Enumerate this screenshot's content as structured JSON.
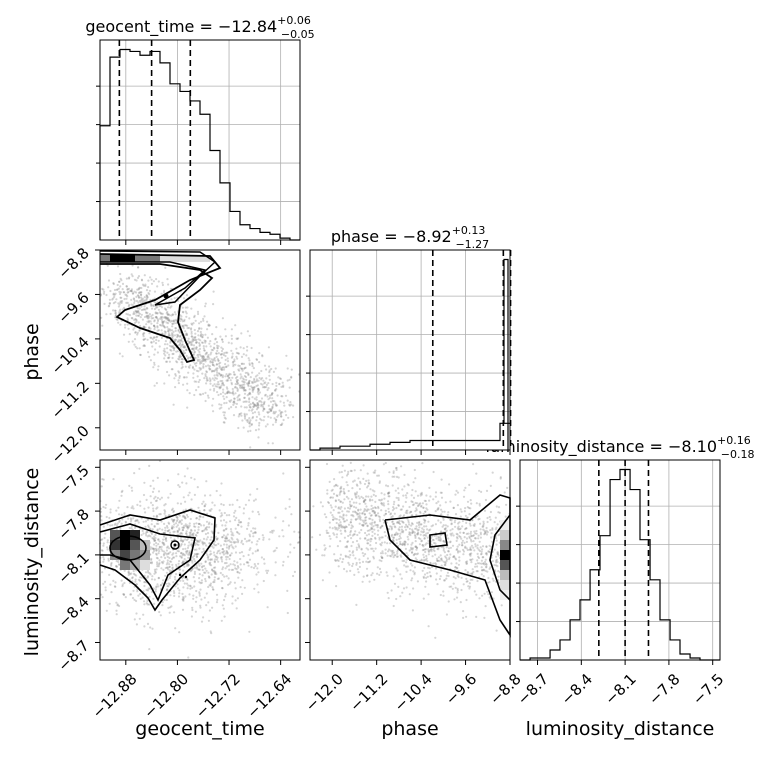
{
  "chart_data": {
    "type": "corner",
    "parameters": [
      "geocent_time",
      "phase",
      "luminosity_distance"
    ],
    "grid": true,
    "titles": [
      {
        "parameter": "geocent_time",
        "text": "geocent_time = −12.84",
        "plus": "+0.06",
        "minus": "−0.05"
      },
      {
        "parameter": "phase",
        "text": "phase = −8.92",
        "plus": "+0.13",
        "minus": "−1.27"
      },
      {
        "parameter": "luminosity_distance",
        "text": "luminosity_distance = −8.10",
        "plus": "+0.16",
        "minus": "−0.18"
      }
    ],
    "axes": {
      "geocent_time": {
        "label": "geocent_time",
        "range": [
          -12.92,
          -12.61
        ],
        "ticks": [
          -12.88,
          -12.8,
          -12.72,
          -12.64
        ],
        "tick_labels": [
          "−12.88",
          "−12.80",
          "−12.72",
          "−12.64"
        ]
      },
      "phase": {
        "label": "phase",
        "range": [
          -12.4,
          -8.8
        ],
        "ticks": [
          -12.0,
          -11.2,
          -10.4,
          -9.6,
          -8.8
        ],
        "tick_labels": [
          "−12.0",
          "−11.2",
          "−10.4",
          "−9.6",
          "−8.8"
        ]
      },
      "luminosity_distance": {
        "label": "luminosity_distance",
        "range": [
          -8.82,
          -7.45
        ],
        "ticks": [
          -8.7,
          -8.4,
          -8.1,
          -7.8,
          -7.5
        ],
        "tick_labels": [
          "−8.7",
          "−8.4",
          "−8.1",
          "−7.8",
          "−7.5"
        ]
      }
    },
    "histograms": {
      "geocent_time": {
        "bin_edges": [
          -12.92,
          -12.9045,
          -12.889,
          -12.8735,
          -12.858,
          -12.8425,
          -12.827,
          -12.8115,
          -12.796,
          -12.7805,
          -12.765,
          -12.7495,
          -12.734,
          -12.7185,
          -12.703,
          -12.6875,
          -12.672,
          -12.6565,
          -12.641,
          -12.6255,
          -12.61
        ],
        "counts": [
          60,
          96,
          100,
          99,
          97,
          99,
          93,
          82,
          78,
          73,
          66,
          47,
          30,
          15,
          8,
          6,
          4,
          3,
          1,
          0
        ],
        "quantiles": [
          -12.89,
          -12.84,
          -12.78
        ]
      },
      "phase": {
        "bin_edges": [
          -12.4,
          -12.22,
          -12.04,
          -11.86,
          -11.68,
          -11.5,
          -11.32,
          -11.14,
          -10.96,
          -10.78,
          -10.6,
          -10.42,
          -10.24,
          -10.06,
          -9.88,
          -9.7,
          -9.52,
          -9.34,
          -9.16,
          -8.98,
          -8.8
        ],
        "counts": [
          0,
          1,
          1,
          2,
          2,
          2,
          3,
          3,
          4,
          4,
          5,
          5,
          5,
          5,
          5,
          5,
          5,
          5,
          5,
          14
        ],
        "counts_edge": [
          100
        ],
        "quantiles": [
          -10.19,
          -8.92,
          -8.79
        ]
      },
      "luminosity_distance": {
        "bin_edges": [
          -8.82,
          -8.751,
          -8.683,
          -8.614,
          -8.546,
          -8.477,
          -8.409,
          -8.34,
          -8.272,
          -8.203,
          -8.135,
          -8.066,
          -7.998,
          -7.929,
          -7.861,
          -7.792,
          -7.724,
          -7.655,
          -7.587,
          -7.518,
          -7.45
        ],
        "counts": [
          0,
          1,
          1,
          5,
          10,
          20,
          30,
          45,
          62,
          90,
          95,
          85,
          60,
          40,
          20,
          10,
          3,
          1,
          0,
          0
        ],
        "quantiles": [
          -8.28,
          -8.1,
          -7.94
        ]
      }
    },
    "pairs": [
      {
        "x": "geocent_time",
        "y": "phase",
        "density_peak": [
          -12.86,
          -8.82
        ]
      },
      {
        "x": "geocent_time",
        "y": "luminosity_distance",
        "density_peak": [
          -12.87,
          -8.08
        ]
      },
      {
        "x": "phase",
        "y": "luminosity_distance",
        "density_peak": [
          -8.82,
          -8.1
        ]
      }
    ]
  }
}
